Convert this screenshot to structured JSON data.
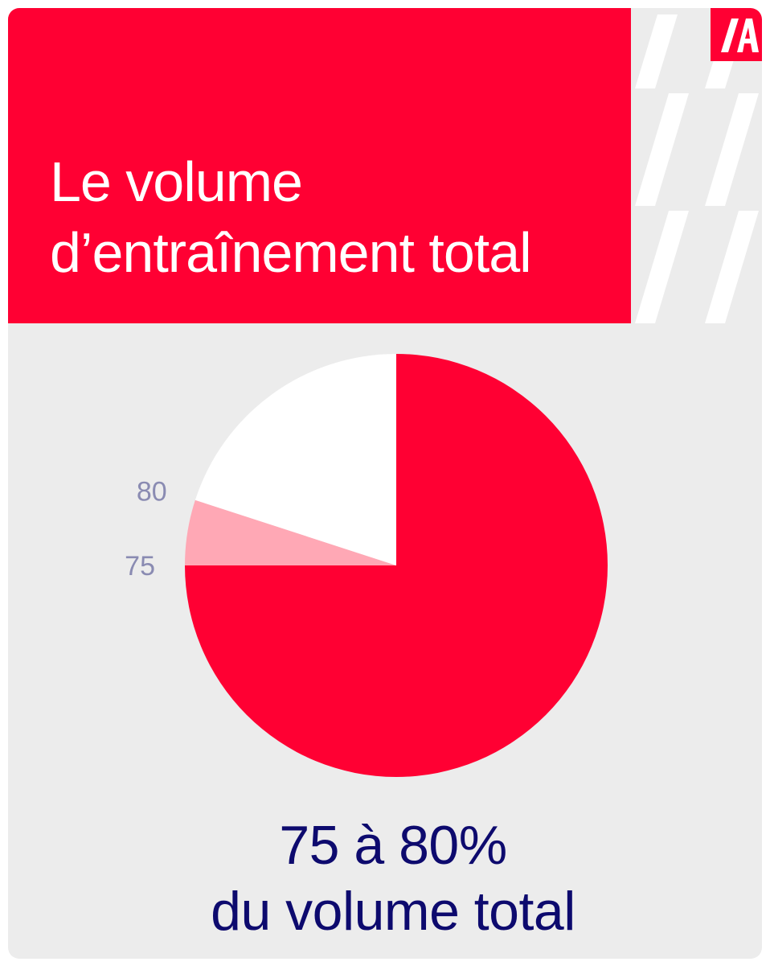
{
  "title": {
    "line1": "Le volume",
    "line2": "d’entraînement total"
  },
  "chart_data": {
    "type": "pie",
    "title": "Le volume d’entraînement total",
    "slices": [
      {
        "label": "",
        "value": 75,
        "color": "#ff0033"
      },
      {
        "label": "",
        "value": 5,
        "color": "#ffa8b5"
      },
      {
        "label": "",
        "value": 20,
        "color": "#ffffff"
      }
    ],
    "boundary_labels": [
      {
        "text": "75",
        "at_value": 75
      },
      {
        "text": "80",
        "at_value": 80
      }
    ],
    "start": "top",
    "direction": "clockwise"
  },
  "caption": {
    "line1": "75 à 80%",
    "line2": "du volume total"
  },
  "colors": {
    "brand": "#ff0033",
    "background": "#ececec",
    "caption_text": "#0d0a6e",
    "tick_text": "#8a8bb2"
  },
  "logo": {
    "icon": "brand-logo-icon"
  }
}
